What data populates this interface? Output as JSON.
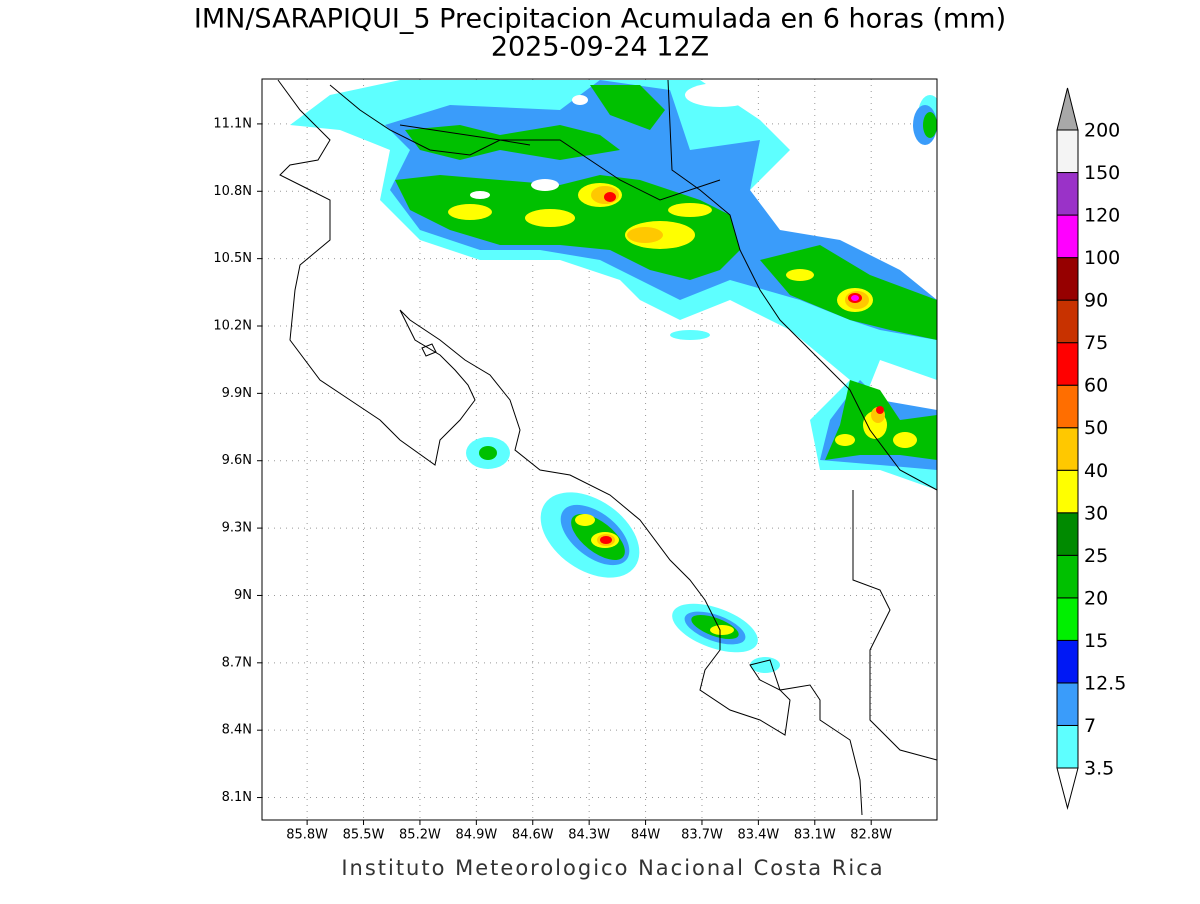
{
  "map": {
    "title": "IMN/SARAPIQUI_5 Precipitacion Acumulada en 6 horas (mm)",
    "subtitle": "2025-09-24 12Z",
    "footer": "Instituto Meteorologico Nacional Costa Rica",
    "lonlim": [
      -86.04,
      -82.45
    ],
    "latlim": [
      8.0,
      11.3
    ],
    "lon_ticks": [
      {
        "value": -85.8,
        "label": "85.8W"
      },
      {
        "value": -85.5,
        "label": "85.5W"
      },
      {
        "value": -85.2,
        "label": "85.2W"
      },
      {
        "value": -84.9,
        "label": "84.9W"
      },
      {
        "value": -84.6,
        "label": "84.6W"
      },
      {
        "value": -84.3,
        "label": "84.3W"
      },
      {
        "value": -84.0,
        "label": "84W"
      },
      {
        "value": -83.7,
        "label": "83.7W"
      },
      {
        "value": -83.4,
        "label": "83.4W"
      },
      {
        "value": -83.1,
        "label": "83.1W"
      },
      {
        "value": -82.8,
        "label": "82.8W"
      }
    ],
    "lat_ticks": [
      {
        "value": 8.1,
        "label": "8.1N"
      },
      {
        "value": 8.4,
        "label": "8.4N"
      },
      {
        "value": 8.7,
        "label": "8.7N"
      },
      {
        "value": 9.0,
        "label": "9N"
      },
      {
        "value": 9.3,
        "label": "9.3N"
      },
      {
        "value": 9.6,
        "label": "9.6N"
      },
      {
        "value": 9.9,
        "label": "9.9N"
      },
      {
        "value": 10.2,
        "label": "10.2N"
      },
      {
        "value": 10.5,
        "label": "10.5N"
      },
      {
        "value": 10.8,
        "label": "10.8N"
      },
      {
        "value": 11.1,
        "label": "11.1N"
      }
    ],
    "grid": true
  },
  "colorbar": {
    "levels": [
      3.5,
      7,
      12.5,
      15,
      20,
      25,
      30,
      40,
      50,
      60,
      75,
      90,
      100,
      120,
      150,
      200
    ],
    "colors": [
      "#5effff",
      "#3a9cfa",
      "#0018f5",
      "#00f000",
      "#00c000",
      "#008a00",
      "#ffff00",
      "#ffc800",
      "#ff6e00",
      "#ff0000",
      "#c83200",
      "#960000",
      "#ff00ff",
      "#9a32c8",
      "#f4f4f4"
    ],
    "under_color": "#ffffff",
    "over_color": "#a8a8a8"
  }
}
